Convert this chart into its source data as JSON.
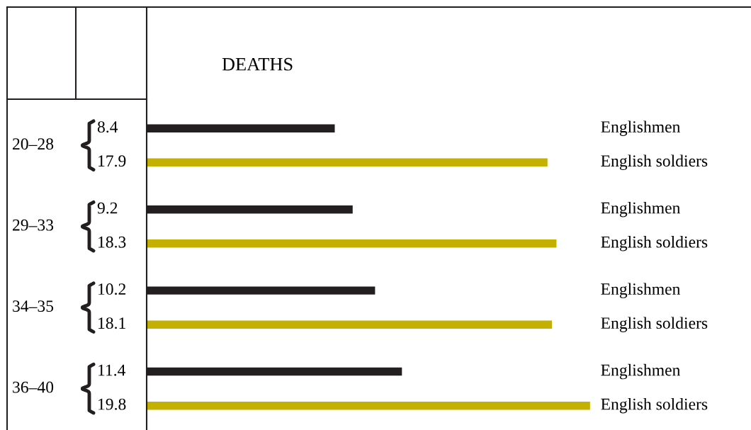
{
  "chart_data": {
    "type": "bar",
    "orientation": "horizontal",
    "title": "DEATHS",
    "categories": [
      "20–28",
      "29–33",
      "34–35",
      "36–40"
    ],
    "series": [
      {
        "name": "Englishmen",
        "color": "#231f20",
        "values": [
          8.4,
          9.2,
          10.2,
          11.4
        ]
      },
      {
        "name": "English soldiers",
        "color": "#c4b000",
        "values": [
          17.9,
          18.3,
          18.1,
          19.8
        ]
      }
    ],
    "data_labels": true
  }
}
